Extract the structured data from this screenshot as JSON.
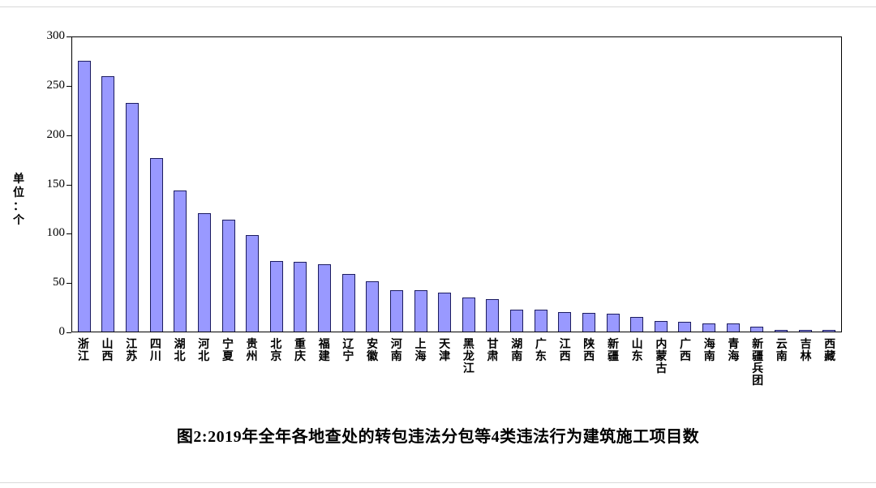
{
  "chart_data": {
    "type": "bar",
    "title": "图2:2019年全年各地查处的转包违法分包等4类违法行为建筑施工项目数",
    "xlabel": "",
    "ylabel": "单位：个",
    "ylim": [
      0,
      300
    ],
    "yticks": [
      0,
      50,
      100,
      150,
      200,
      250,
      300
    ],
    "grid": false,
    "legend_position": "none",
    "bar_fill": "#9999FF",
    "bar_border": "#1c1c60",
    "categories": [
      "浙江",
      "山西",
      "江苏",
      "四川",
      "湖北",
      "河北",
      "宁夏",
      "贵州",
      "北京",
      "重庆",
      "福建",
      "辽宁",
      "安徽",
      "河南",
      "上海",
      "天津",
      "黑龙江",
      "甘肃",
      "湖南",
      "广东",
      "江西",
      "陕西",
      "新疆",
      "山东",
      "内蒙古",
      "广西",
      "海南",
      "青海",
      "新疆兵团",
      "云南",
      "吉林",
      "西藏"
    ],
    "values": [
      276,
      260,
      233,
      177,
      144,
      121,
      114,
      98,
      72,
      71,
      69,
      59,
      51,
      42,
      42,
      40,
      35,
      33,
      22,
      22,
      20,
      19,
      18,
      15,
      11,
      10,
      8,
      8,
      5,
      2,
      2,
      2
    ]
  }
}
